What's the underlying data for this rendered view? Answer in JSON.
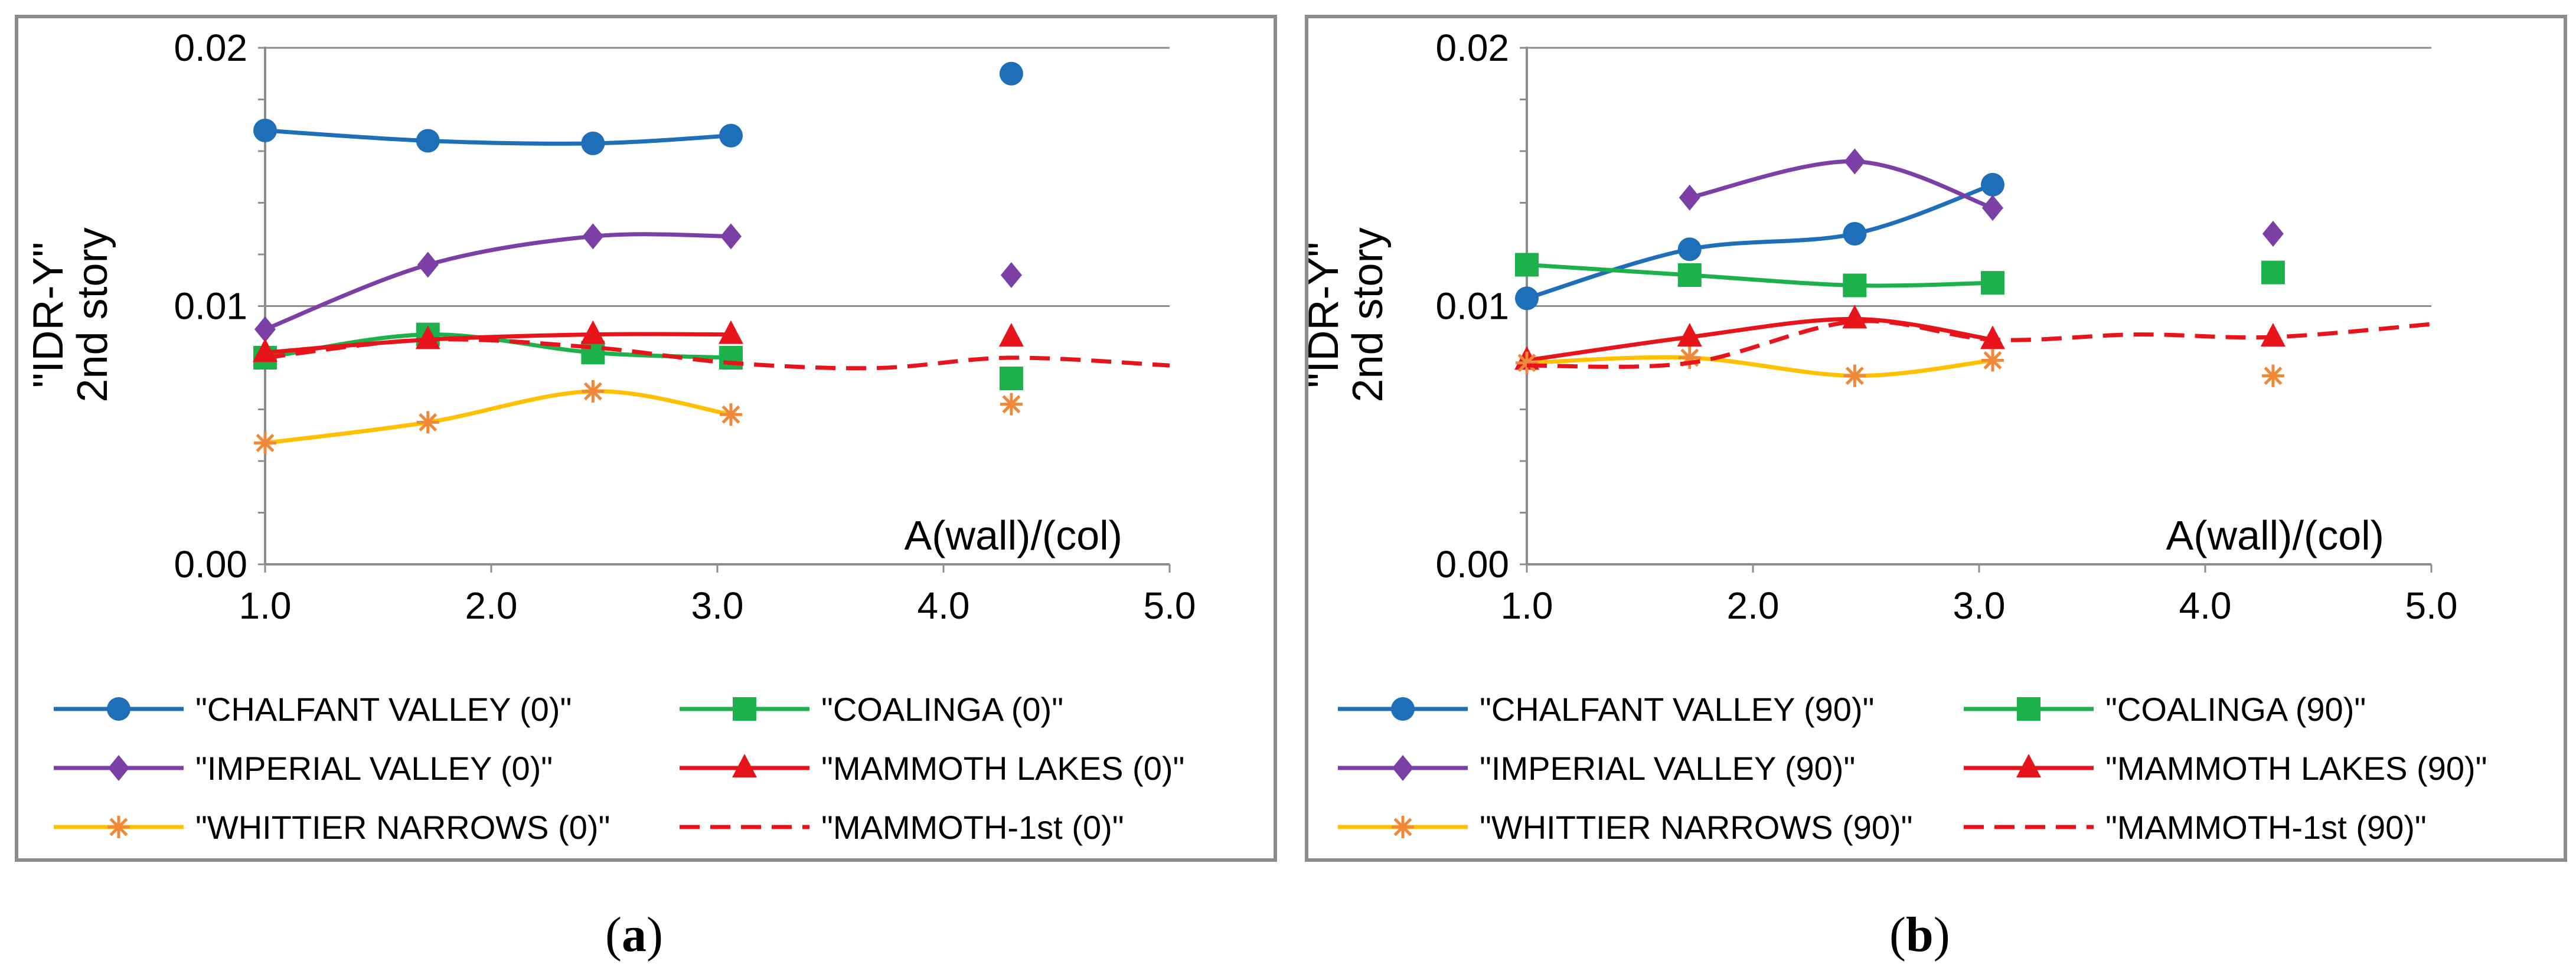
{
  "figure": {
    "caption_a": "a",
    "caption_b": "b"
  },
  "chart_data": [
    {
      "type": "line",
      "panel": "a",
      "ylabel_line1": "\"IDR-Y\"",
      "ylabel_line2": "2nd story",
      "xlabel": "A(wall)/(col)",
      "xlim": [
        1.0,
        5.0
      ],
      "ylim": [
        0.0,
        0.02
      ],
      "xticks": [
        "1.0",
        "2.0",
        "3.0",
        "4.0",
        "5.0"
      ],
      "yticks": [
        "0.00",
        "0.01",
        "0.02"
      ],
      "grid": "horizontal",
      "legend_position": "bottom",
      "series": [
        {
          "name": "\"CHALFANT VALLEY (0)\"",
          "color": "#1F6FB8",
          "marker": "circle",
          "style": "solid",
          "x": [
            1.0,
            1.72,
            2.45,
            3.06
          ],
          "y": [
            0.0168,
            0.0164,
            0.0163,
            0.0166
          ],
          "extra": [
            {
              "x": 4.3,
              "y": 0.019
            }
          ]
        },
        {
          "name": "\"COALINGA (0)\"",
          "color": "#1DB14B",
          "marker": "square",
          "style": "solid",
          "x": [
            1.0,
            1.72,
            2.45,
            3.06
          ],
          "y": [
            0.008,
            0.0089,
            0.0082,
            0.008
          ],
          "extra": [
            {
              "x": 4.3,
              "y": 0.0072
            }
          ]
        },
        {
          "name": "\"IMPERIAL VALLEY (0)\"",
          "color": "#7B3FA6",
          "marker": "diamond",
          "style": "solid",
          "x": [
            1.0,
            1.72,
            2.45,
            3.06
          ],
          "y": [
            0.0091,
            0.0116,
            0.0127,
            0.0127
          ],
          "extra": [
            {
              "x": 4.3,
              "y": 0.0112
            }
          ]
        },
        {
          "name": "\"MAMMOTH LAKES (0)\"",
          "color": "#E8141B",
          "marker": "triangle",
          "style": "solid",
          "x": [
            1.0,
            1.72,
            2.45,
            3.06
          ],
          "y": [
            0.0082,
            0.0087,
            0.0089,
            0.0089
          ],
          "extra": [
            {
              "x": 4.3,
              "y": 0.0088
            }
          ]
        },
        {
          "name": "\"WHITTIER NARROWS (0)\"",
          "color": "#FFC000",
          "markerColor": "#F0883A",
          "marker": "asterisk",
          "style": "solid",
          "x": [
            1.0,
            1.72,
            2.45,
            3.06
          ],
          "y": [
            0.0047,
            0.0055,
            0.0067,
            0.0058
          ],
          "extra": [
            {
              "x": 4.3,
              "y": 0.0062
            }
          ]
        },
        {
          "name": "\"MAMMOTH-1st (0)\"",
          "color": "#E8141B",
          "marker": "none",
          "style": "dashed",
          "x": [
            1.0,
            1.72,
            2.45,
            3.06,
            3.7,
            4.3,
            5.0
          ],
          "y": [
            0.008,
            0.0087,
            0.0084,
            0.0078,
            0.0076,
            0.008,
            0.0077
          ],
          "extra": []
        }
      ]
    },
    {
      "type": "line",
      "panel": "b",
      "ylabel_line1": "\"IDR-Y\"",
      "ylabel_line2": "2nd story",
      "xlabel": "A(wall)/(col)",
      "xlim": [
        1.0,
        5.0
      ],
      "ylim": [
        0.0,
        0.02
      ],
      "xticks": [
        "1.0",
        "2.0",
        "3.0",
        "4.0",
        "5.0"
      ],
      "yticks": [
        "0.00",
        "0.01",
        "0.02"
      ],
      "grid": "horizontal",
      "legend_position": "bottom",
      "series": [
        {
          "name": "\"CHALFANT VALLEY (90)\"",
          "color": "#1F6FB8",
          "marker": "circle",
          "style": "solid",
          "x": [
            1.0,
            1.72,
            2.45,
            3.06
          ],
          "y": [
            0.0103,
            0.0122,
            0.0128,
            0.0147
          ],
          "extra": []
        },
        {
          "name": "\"COALINGA (90)\"",
          "color": "#1DB14B",
          "marker": "square",
          "style": "solid",
          "x": [
            1.0,
            1.72,
            2.45,
            3.06
          ],
          "y": [
            0.0116,
            0.0112,
            0.0108,
            0.0109
          ],
          "extra": [
            {
              "x": 4.3,
              "y": 0.0113
            }
          ]
        },
        {
          "name": "\"IMPERIAL VALLEY (90)\"",
          "color": "#7B3FA6",
          "marker": "diamond",
          "style": "solid",
          "x": [
            1.72,
            2.45,
            3.06
          ],
          "y": [
            0.0142,
            0.0156,
            0.0138
          ],
          "extra": [
            {
              "x": 4.3,
              "y": 0.0128
            }
          ]
        },
        {
          "name": "\"MAMMOTH LAKES (90)\"",
          "color": "#E8141B",
          "marker": "triangle",
          "style": "solid",
          "x": [
            1.0,
            1.72,
            2.45,
            3.06
          ],
          "y": [
            0.0079,
            0.0088,
            0.0095,
            0.0087
          ],
          "extra": [
            {
              "x": 4.3,
              "y": 0.0088
            }
          ]
        },
        {
          "name": "\"WHITTIER NARROWS (90)\"",
          "color": "#FFC000",
          "markerColor": "#F0883A",
          "marker": "asterisk",
          "style": "solid",
          "x": [
            1.0,
            1.72,
            2.45,
            3.06
          ],
          "y": [
            0.0078,
            0.008,
            0.0073,
            0.0079
          ],
          "extra": [
            {
              "x": 4.3,
              "y": 0.0073
            }
          ]
        },
        {
          "name": "\"MAMMOTH-1st (90)\"",
          "color": "#E8141B",
          "marker": "none",
          "style": "dashed",
          "x": [
            1.0,
            1.72,
            2.45,
            3.06,
            3.7,
            4.3,
            5.0
          ],
          "y": [
            0.0077,
            0.0078,
            0.0094,
            0.0087,
            0.0089,
            0.0088,
            0.0093
          ],
          "extra": []
        }
      ]
    }
  ]
}
